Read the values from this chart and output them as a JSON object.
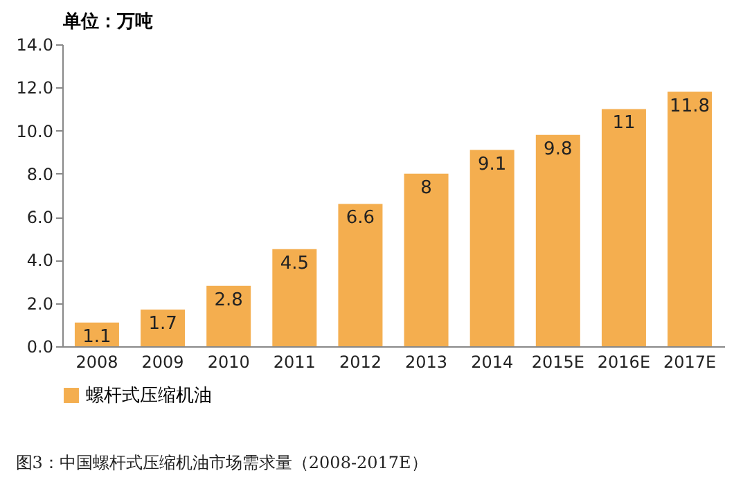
{
  "chart_data": {
    "type": "bar",
    "title": "图3：中国螺杆式压缩机油市场需求量（2008-2017E）",
    "ylabel": "单位：万吨",
    "categories": [
      "2008",
      "2009",
      "2010",
      "2011",
      "2012",
      "2013",
      "2014",
      "2015E",
      "2016E",
      "2017E"
    ],
    "series": [
      {
        "name": "螺杆式压缩机油",
        "color": "#f4ae4f",
        "values": [
          1.1,
          1.7,
          2.8,
          4.5,
          6.6,
          8,
          9.1,
          9.8,
          11,
          11.8
        ]
      }
    ],
    "ylim": [
      0,
      14
    ],
    "yticks": [
      {
        "value": 0,
        "label": "0.0"
      },
      {
        "value": 2,
        "label": "2.0"
      },
      {
        "value": 4,
        "label": "4.0"
      },
      {
        "value": 6,
        "label": "6.0"
      },
      {
        "value": 8,
        "label": "8.0"
      },
      {
        "value": 10,
        "label": "10.0"
      },
      {
        "value": 12,
        "label": "12.0"
      },
      {
        "value": 14,
        "label": "14.0"
      }
    ],
    "data_labels": true,
    "legend": "bottom",
    "grid": false
  }
}
